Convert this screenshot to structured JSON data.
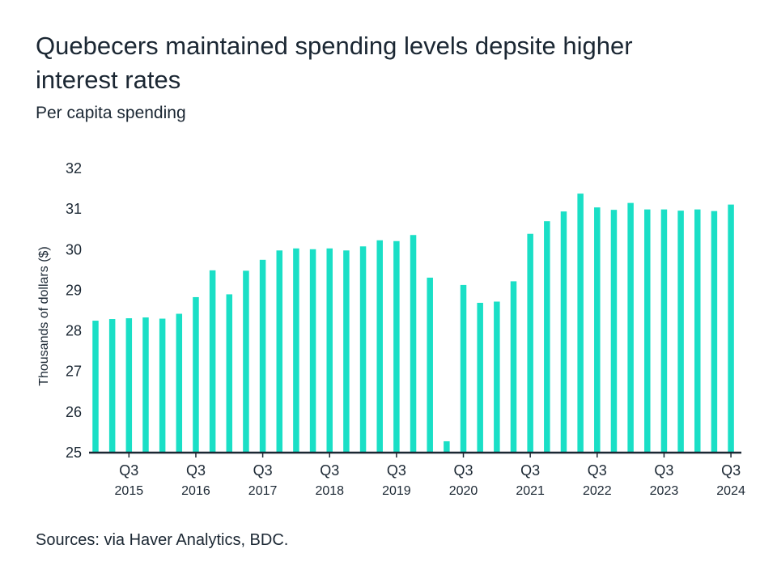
{
  "chart_data": {
    "type": "bar",
    "title": "Quebecers maintained spending levels depsite higher interest rates",
    "subtitle": "Per capita spending",
    "ylabel": "Thousands of dollars ($)",
    "xlabel": "",
    "ylim": [
      25,
      32
    ],
    "yticks": [
      25,
      26,
      27,
      28,
      29,
      30,
      31,
      32
    ],
    "grid": false,
    "bar_color": "#1adfc6",
    "categories": [
      "2015Q1",
      "2015Q2",
      "2015Q3",
      "2015Q4",
      "2016Q1",
      "2016Q2",
      "2016Q3",
      "2016Q4",
      "2017Q1",
      "2017Q2",
      "2017Q3",
      "2017Q4",
      "2018Q1",
      "2018Q2",
      "2018Q3",
      "2018Q4",
      "2019Q1",
      "2019Q2",
      "2019Q3",
      "2019Q4",
      "2020Q1",
      "2020Q2",
      "2020Q3",
      "2020Q4",
      "2021Q1",
      "2021Q2",
      "2021Q3",
      "2021Q4",
      "2022Q1",
      "2022Q2",
      "2022Q3",
      "2022Q4",
      "2023Q1",
      "2023Q2",
      "2023Q3",
      "2023Q4",
      "2024Q1",
      "2024Q2",
      "2024Q3"
    ],
    "values": [
      28.23,
      28.27,
      28.29,
      28.31,
      28.28,
      28.4,
      28.81,
      29.47,
      28.88,
      29.46,
      29.73,
      29.96,
      30.01,
      29.99,
      30.01,
      29.96,
      30.06,
      30.21,
      30.19,
      30.34,
      29.29,
      25.26,
      29.11,
      28.67,
      28.7,
      29.2,
      30.37,
      30.68,
      30.92,
      31.36,
      31.02,
      30.96,
      31.13,
      30.97,
      30.97,
      30.94,
      30.97,
      30.93,
      31.09
    ],
    "xtick_labels": [
      {
        "quarter": "Q3",
        "year": "2015",
        "category": "2015Q3"
      },
      {
        "quarter": "Q3",
        "year": "2016",
        "category": "2016Q3"
      },
      {
        "quarter": "Q3",
        "year": "2017",
        "category": "2017Q3"
      },
      {
        "quarter": "Q3",
        "year": "2018",
        "category": "2018Q3"
      },
      {
        "quarter": "Q3",
        "year": "2019",
        "category": "2019Q3"
      },
      {
        "quarter": "Q3",
        "year": "2020",
        "category": "2020Q3"
      },
      {
        "quarter": "Q3",
        "year": "2021",
        "category": "2021Q3"
      },
      {
        "quarter": "Q3",
        "year": "2022",
        "category": "2022Q3"
      },
      {
        "quarter": "Q3",
        "year": "2023",
        "category": "2023Q3"
      },
      {
        "quarter": "Q3",
        "year": "2024",
        "category": "2024Q3"
      }
    ]
  },
  "source": "Sources: via Haver Analytics, BDC."
}
